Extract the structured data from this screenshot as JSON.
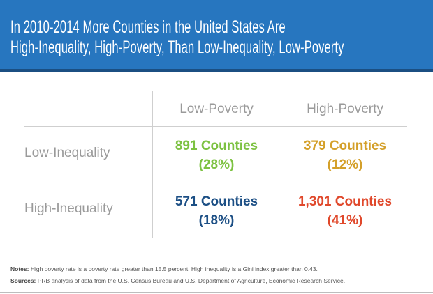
{
  "title": {
    "line1": "In 2010-2014 More Counties in the United States Are",
    "line2": "High-Inequality, High-Poverty, Than Low-Inequality, Low-Poverty"
  },
  "colors": {
    "header": "#2776bf",
    "low_ineq_low_pov": "#7dc242",
    "low_ineq_high_pov": "#d4a02a",
    "high_ineq_low_pov": "#1c4f85",
    "high_ineq_high_pov": "#e0482b"
  },
  "chart_data": {
    "type": "table",
    "columns": [
      "Low-Poverty",
      "High-Poverty"
    ],
    "rows": [
      "Low-Inequality",
      "High-Inequality"
    ],
    "cells": [
      [
        {
          "count": "891 Counties",
          "pct": "(28%)"
        },
        {
          "count": "379 Counties",
          "pct": "(12%)"
        }
      ],
      [
        {
          "count": "571 Counties",
          "pct": "(18%)"
        },
        {
          "count": "1,301 Counties",
          "pct": "(41%)"
        }
      ]
    ]
  },
  "notes": {
    "notes_label": "Notes:",
    "notes_text": " High poverty rate is a poverty rate greater than 15.5 percent. High inequality is a Gini index greater than 0.43.",
    "sources_label": "Sources:",
    "sources_text": " PRB analysis of data from the U.S. Census Bureau and U.S. Department of Agriculture, Economic Research Service."
  }
}
